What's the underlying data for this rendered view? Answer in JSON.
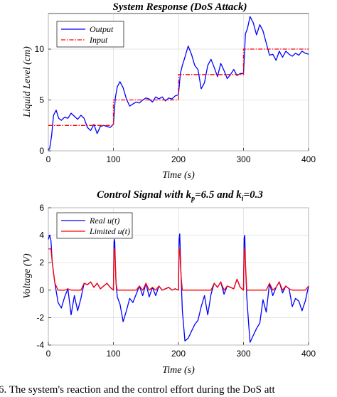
{
  "caption": "6. The system's reaction and the control effort during the DoS att",
  "chart_data": [
    {
      "type": "line",
      "title": "System Response (DoS Attack)",
      "xlabel": "Time (s)",
      "ylabel": "Liquid Level (cm)",
      "xlim": [
        0,
        400
      ],
      "ylim": [
        0,
        13.5
      ],
      "xticks": [
        0,
        100,
        200,
        300,
        400
      ],
      "yticks": [
        0,
        5,
        10
      ],
      "grid": true,
      "legend_position": "top-left",
      "series": [
        {
          "name": "Output",
          "color": "#0000ff",
          "style": "solid",
          "x": [
            0,
            2,
            5,
            8,
            12,
            16,
            20,
            25,
            30,
            35,
            40,
            45,
            50,
            55,
            60,
            65,
            70,
            75,
            80,
            85,
            90,
            95,
            100,
            103,
            106,
            110,
            115,
            120,
            125,
            130,
            135,
            140,
            145,
            150,
            155,
            160,
            165,
            170,
            175,
            180,
            185,
            190,
            195,
            200,
            203,
            206,
            210,
            215,
            220,
            225,
            230,
            235,
            240,
            245,
            250,
            255,
            260,
            265,
            270,
            275,
            280,
            285,
            290,
            295,
            300,
            303,
            306,
            310,
            315,
            320,
            325,
            330,
            335,
            340,
            345,
            350,
            355,
            360,
            365,
            370,
            375,
            380,
            385,
            390,
            395,
            400
          ],
          "y": [
            0.1,
            0.2,
            1.5,
            3.5,
            4.0,
            3.2,
            3.0,
            3.3,
            3.2,
            3.7,
            3.4,
            3.1,
            3.5,
            3.2,
            2.3,
            2.0,
            2.6,
            1.7,
            2.4,
            2.5,
            2.4,
            2.3,
            2.6,
            5.2,
            6.3,
            6.8,
            6.2,
            5.1,
            4.4,
            4.6,
            4.8,
            4.7,
            5.0,
            5.2,
            5.1,
            4.8,
            5.3,
            5.1,
            5.3,
            4.9,
            5.2,
            5.1,
            5.4,
            5.5,
            7.6,
            8.4,
            9.2,
            10.3,
            9.5,
            8.4,
            8.0,
            6.1,
            6.7,
            8.4,
            9.0,
            8.2,
            7.3,
            8.6,
            7.9,
            7.1,
            7.5,
            8.0,
            7.4,
            7.6,
            7.6,
            11.5,
            12.0,
            13.2,
            12.6,
            11.4,
            12.4,
            11.8,
            10.6,
            9.4,
            9.5,
            8.9,
            9.8,
            9.2,
            9.8,
            9.5,
            9.3,
            9.6,
            9.4,
            9.8,
            9.6,
            9.5
          ]
        },
        {
          "name": "Input",
          "color": "#ff0000",
          "style": "dashdot",
          "x": [
            0,
            100,
            100,
            200,
            200,
            300,
            300,
            400
          ],
          "y": [
            2.5,
            2.5,
            5,
            5,
            7.5,
            7.5,
            10,
            10
          ]
        }
      ]
    },
    {
      "type": "line",
      "title": "Control Signal with k",
      "title_sub1": "p",
      "title_mid": "=6.5 and k",
      "title_sub2": "i",
      "title_end": "=0.3",
      "xlabel": "Time (s)",
      "ylabel": "Voltage (V)",
      "xlim": [
        0,
        400
      ],
      "ylim": [
        -4,
        6
      ],
      "xticks": [
        0,
        100,
        200,
        300,
        400
      ],
      "yticks": [
        -4,
        -2,
        0,
        2,
        4,
        6
      ],
      "grid": true,
      "legend_position": "top-left",
      "series": [
        {
          "name": "Real u(t)",
          "color": "#0000ff",
          "style": "solid",
          "x": [
            0,
            2,
            4,
            6,
            10,
            15,
            20,
            25,
            30,
            35,
            40,
            45,
            50,
            55,
            60,
            65,
            70,
            75,
            80,
            85,
            90,
            95,
            100,
            101,
            102,
            103,
            104,
            106,
            110,
            115,
            120,
            125,
            130,
            135,
            140,
            145,
            150,
            155,
            160,
            165,
            170,
            175,
            180,
            185,
            190,
            195,
            200,
            201,
            202,
            204,
            206,
            210,
            215,
            220,
            225,
            230,
            235,
            240,
            245,
            250,
            255,
            260,
            265,
            270,
            275,
            280,
            285,
            290,
            295,
            300,
            301,
            302,
            303,
            305,
            308,
            310,
            315,
            320,
            325,
            330,
            335,
            340,
            345,
            350,
            355,
            360,
            365,
            370,
            375,
            380,
            385,
            390,
            395,
            400
          ],
          "y": [
            3.7,
            4.0,
            3.6,
            2.0,
            0.5,
            -0.9,
            -1.3,
            -0.5,
            0.1,
            -1.8,
            -0.4,
            -1.5,
            -0.6,
            0.5,
            0.4,
            0.6,
            0.2,
            0.5,
            0.1,
            0.3,
            0.5,
            0.2,
            0.0,
            3.5,
            3.7,
            2.0,
            0.5,
            -0.5,
            -1.0,
            -2.3,
            -1.5,
            -0.6,
            -0.9,
            -0.3,
            0.3,
            -0.4,
            0.5,
            -0.5,
            0.2,
            -0.4,
            0.3,
            0.0,
            0.1,
            0.2,
            0.0,
            0.1,
            0.0,
            3.7,
            4.1,
            1.0,
            -1.5,
            -3.7,
            -3.5,
            -3.0,
            -2.5,
            -2.2,
            -1.2,
            -0.4,
            -1.8,
            -0.3,
            0.5,
            0.2,
            0.6,
            -0.3,
            0.3,
            0.2,
            0.1,
            0.8,
            0.2,
            0.0,
            3.8,
            4.0,
            2.0,
            -0.5,
            -2.5,
            -3.8,
            -3.3,
            -2.8,
            -2.4,
            -0.7,
            -1.6,
            0.5,
            -0.4,
            0.2,
            0.6,
            -0.2,
            0.3,
            0.1,
            -1.2,
            -0.6,
            -0.8,
            -1.5,
            -0.8,
            0.3
          ]
        },
        {
          "name": "Limited u(t)",
          "color": "#ff0000",
          "style": "solid",
          "x": [
            0,
            2,
            4,
            6,
            10,
            15,
            20,
            25,
            30,
            35,
            40,
            45,
            50,
            55,
            60,
            65,
            70,
            75,
            80,
            85,
            90,
            95,
            100,
            101,
            102,
            103,
            104,
            106,
            110,
            115,
            120,
            125,
            130,
            135,
            140,
            145,
            150,
            155,
            160,
            165,
            170,
            175,
            180,
            185,
            190,
            195,
            200,
            201,
            202,
            204,
            206,
            210,
            215,
            220,
            225,
            230,
            235,
            240,
            245,
            250,
            255,
            260,
            265,
            270,
            275,
            280,
            285,
            290,
            295,
            300,
            301,
            302,
            303,
            305,
            308,
            310,
            315,
            320,
            325,
            330,
            335,
            340,
            345,
            350,
            355,
            360,
            365,
            370,
            375,
            380,
            385,
            390,
            395,
            400
          ],
          "y": [
            3.0,
            3.0,
            3.0,
            2.0,
            0.5,
            0.0,
            0.0,
            0.0,
            0.1,
            0.0,
            0.0,
            0.0,
            0.0,
            0.5,
            0.4,
            0.6,
            0.2,
            0.5,
            0.1,
            0.3,
            0.5,
            0.2,
            0.0,
            3.0,
            3.0,
            2.0,
            0.5,
            0.0,
            0.0,
            0.0,
            0.0,
            0.0,
            0.0,
            0.0,
            0.3,
            0.0,
            0.5,
            0.0,
            0.2,
            0.0,
            0.3,
            0.0,
            0.1,
            0.2,
            0.0,
            0.1,
            0.0,
            3.0,
            3.0,
            1.0,
            0.0,
            0.0,
            0.0,
            0.0,
            0.0,
            0.0,
            0.0,
            0.0,
            0.0,
            0.0,
            0.5,
            0.2,
            0.6,
            0.0,
            0.3,
            0.2,
            0.1,
            0.8,
            0.2,
            0.0,
            3.0,
            3.0,
            2.0,
            0.0,
            0.0,
            0.0,
            0.0,
            0.0,
            0.0,
            0.0,
            0.0,
            0.5,
            0.0,
            0.2,
            0.6,
            0.0,
            0.3,
            0.1,
            0.0,
            0.0,
            0.0,
            0.0,
            0.0,
            0.3
          ]
        }
      ]
    }
  ]
}
